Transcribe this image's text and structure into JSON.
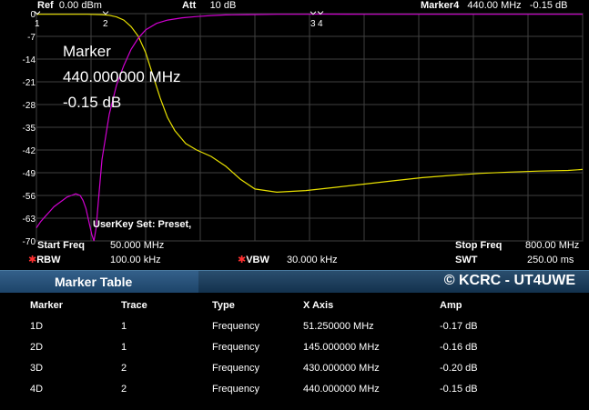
{
  "header": {
    "ref_label": "Ref",
    "ref_value": "0.00 dBm",
    "att_label": "Att",
    "att_value": "10 dB",
    "marker_label": "Marker4",
    "marker_value": "440.00 MHz",
    "marker_amp": "-0.15 dB"
  },
  "marker_overlay": {
    "title": "Marker",
    "freq": "440.000000 MHz",
    "amp": "-0.15 dB"
  },
  "userkey_text": "UserKey Set:   Preset,",
  "bottom_info": {
    "start_freq_label": "Start Freq",
    "start_freq_value": "50.000 MHz",
    "stop_freq_label": "Stop Freq",
    "stop_freq_value": "800.00 MHz",
    "rbw_label": "RBW",
    "rbw_value": "100.00 kHz",
    "vbw_label": "VBW",
    "vbw_value": "30.000 kHz",
    "swt_label": "SWT",
    "swt_value": "250.00 ms"
  },
  "marker_table": {
    "title": "Marker Table",
    "copyright": "© KCRC - UT4UWE",
    "columns": [
      "Marker",
      "Trace",
      "Type",
      "X Axis",
      "Amp"
    ],
    "rows": [
      [
        "1D",
        "1",
        "Frequency",
        "51.250000 MHz",
        "-0.17 dB"
      ],
      [
        "2D",
        "1",
        "Frequency",
        "145.000000 MHz",
        "-0.16 dB"
      ],
      [
        "3D",
        "2",
        "Frequency",
        "430.000000 MHz",
        "-0.20 dB"
      ],
      [
        "4D",
        "2",
        "Frequency",
        "440.000000 MHz",
        "-0.15 dB"
      ]
    ]
  },
  "chart_data": {
    "type": "line",
    "xlim": [
      50,
      800
    ],
    "ylim": [
      -70,
      0
    ],
    "y_ticks": [
      0,
      -7,
      -14,
      -21,
      -28,
      -35,
      -42,
      -49,
      -56,
      -63,
      -70
    ],
    "y_tick_labels": [
      "0",
      "-7",
      "-14",
      "-21",
      "-28",
      "-35",
      "-42",
      "-49",
      "-56",
      "-63",
      "-70"
    ],
    "grid": true,
    "colors": {
      "trace1": "#e8e000",
      "trace2": "#d000d0",
      "background": "#000000",
      "grid": "#404040"
    },
    "series": [
      {
        "x": [
          50,
          80,
          100,
          120,
          140,
          150,
          160,
          170,
          180,
          190,
          200,
          210,
          220,
          230,
          240,
          255,
          270,
          290,
          310,
          330,
          350,
          380,
          420,
          460,
          500,
          540,
          580,
          620,
          660,
          700,
          740,
          780,
          800
        ],
        "y": [
          -0.2,
          -0.2,
          -0.2,
          -0.2,
          -0.3,
          -0.5,
          -1,
          -2,
          -4,
          -7,
          -12,
          -19,
          -26,
          -32,
          -36,
          -40,
          -42,
          -44,
          -47,
          -51,
          -54,
          -55,
          -54.5,
          -53.5,
          -52.5,
          -51.5,
          -50.5,
          -49.8,
          -49.2,
          -48.8,
          -48.5,
          -48.3,
          -48
        ]
      },
      {
        "x": [
          50,
          56,
          62,
          68,
          74,
          80,
          86,
          92,
          98,
          104,
          110,
          114,
          118,
          122,
          126,
          129,
          132,
          135,
          140,
          150,
          160,
          170,
          180,
          190,
          200,
          215,
          230,
          250,
          270,
          290,
          310,
          340,
          380,
          420,
          440,
          500,
          560,
          620,
          680,
          740,
          800
        ],
        "y": [
          -66,
          -64,
          -62.5,
          -61,
          -59.5,
          -58.5,
          -57.5,
          -56.5,
          -56,
          -55.5,
          -56,
          -57.5,
          -60,
          -64,
          -68,
          -70,
          -66,
          -58,
          -45,
          -31,
          -22,
          -16,
          -11,
          -7.5,
          -5,
          -3,
          -2,
          -1.3,
          -0.9,
          -0.6,
          -0.4,
          -0.3,
          -0.2,
          -0.2,
          -0.15,
          -0.2,
          -0.2,
          -0.2,
          -0.2,
          -0.2,
          -0.2
        ]
      }
    ],
    "markers": [
      {
        "label": "1",
        "x": 51.25,
        "y": -0.17
      },
      {
        "label": "2",
        "x": 145,
        "y": -0.16
      },
      {
        "label": "3",
        "x": 430,
        "y": -0.2
      },
      {
        "label": "4",
        "x": 440,
        "y": -0.15
      }
    ]
  }
}
